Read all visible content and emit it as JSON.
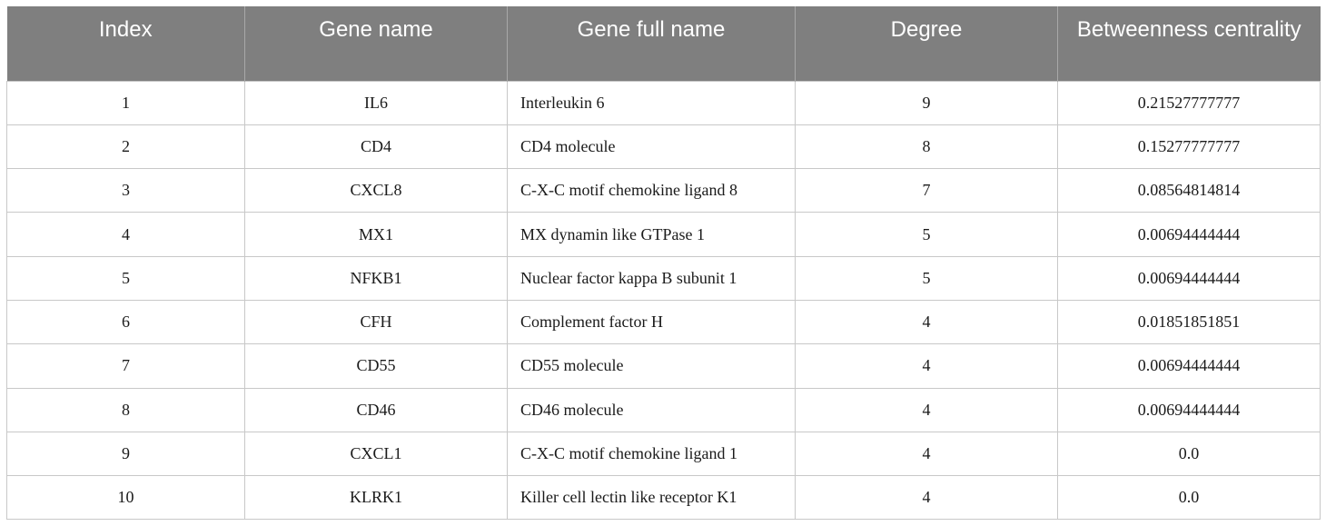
{
  "table": {
    "headers": [
      "Index",
      "Gene name",
      "Gene full name",
      "Degree",
      "Betweenness centrality"
    ],
    "rows": [
      [
        "1",
        "IL6",
        "Interleukin 6",
        "9",
        "0.21527777777"
      ],
      [
        "2",
        "CD4",
        "CD4 molecule",
        "8",
        "0.15277777777"
      ],
      [
        "3",
        "CXCL8",
        "C-X-C motif chemokine ligand 8",
        "7",
        "0.08564814814"
      ],
      [
        "4",
        "MX1",
        "MX dynamin like GTPase 1",
        "5",
        "0.00694444444"
      ],
      [
        "5",
        "NFKB1",
        "Nuclear factor kappa B subunit 1",
        "5",
        "0.00694444444"
      ],
      [
        "6",
        "CFH",
        "Complement factor H",
        "4",
        "0.01851851851"
      ],
      [
        "7",
        "CD55",
        "CD55 molecule",
        "4",
        "0.00694444444"
      ],
      [
        "8",
        "CD46",
        "CD46 molecule",
        "4",
        "0.00694444444"
      ],
      [
        "9",
        "CXCL1",
        "C-X-C motif chemokine ligand 1",
        "4",
        "0.0"
      ],
      [
        "10",
        "KLRK1",
        "Killer cell lectin like receptor K1",
        "4",
        "0.0"
      ]
    ]
  }
}
